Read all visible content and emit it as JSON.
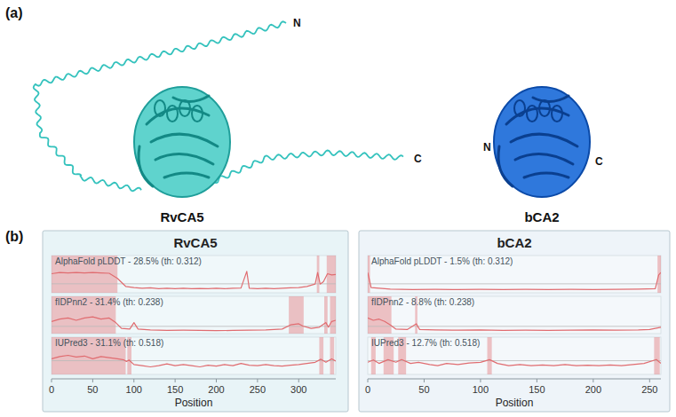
{
  "panel_labels": [
    "(a)",
    "(b)"
  ],
  "structures": [
    {
      "name": "RvCA5",
      "n_label": "N",
      "c_label": "C"
    },
    {
      "name": "bCA2",
      "n_label": "N",
      "c_label": "C"
    }
  ],
  "chart_data": [
    {
      "type": "line",
      "title": "RvCA5",
      "x_label": "Position",
      "xlim": [
        0,
        345
      ],
      "xticks": [
        0,
        50,
        100,
        150,
        200,
        250,
        300
      ],
      "ylim": [
        0,
        1
      ],
      "tick_labels": "x",
      "series": [
        {
          "name": "AlphaFold pLDDT - 28.5% (th: 0.312)",
          "color": "#e06c70",
          "threshold": 0.312,
          "x": [
            0,
            10,
            20,
            30,
            40,
            50,
            60,
            70,
            80,
            90,
            100,
            110,
            120,
            130,
            140,
            150,
            160,
            170,
            180,
            190,
            200,
            210,
            220,
            230,
            237,
            240,
            250,
            260,
            270,
            280,
            290,
            300,
            310,
            320,
            323,
            326,
            330,
            335,
            340,
            345
          ],
          "values": [
            0.75,
            0.8,
            0.78,
            0.8,
            0.78,
            0.8,
            0.78,
            0.77,
            0.55,
            0.2,
            0.15,
            0.12,
            0.14,
            0.1,
            0.12,
            0.1,
            0.12,
            0.1,
            0.11,
            0.1,
            0.12,
            0.1,
            0.12,
            0.13,
            0.85,
            0.12,
            0.1,
            0.12,
            0.1,
            0.12,
            0.14,
            0.15,
            0.2,
            0.3,
            0.8,
            0.3,
            0.4,
            0.75,
            0.7,
            0.72
          ],
          "regions": [
            [
              0,
              80
            ],
            [
              322,
              325
            ],
            [
              334,
              345
            ]
          ]
        },
        {
          "name": "fIDPnn2 - 31.4% (th: 0.238)",
          "color": "#e06c70",
          "threshold": 0.238,
          "x": [
            0,
            10,
            20,
            30,
            40,
            50,
            60,
            70,
            78,
            85,
            95,
            100,
            105,
            120,
            140,
            160,
            180,
            200,
            220,
            240,
            260,
            280,
            290,
            300,
            305,
            315,
            325,
            333,
            336,
            340,
            345
          ],
          "values": [
            0.45,
            0.55,
            0.6,
            0.5,
            0.6,
            0.65,
            0.55,
            0.6,
            0.4,
            0.15,
            0.12,
            0.4,
            0.12,
            0.08,
            0.06,
            0.07,
            0.06,
            0.05,
            0.06,
            0.07,
            0.08,
            0.12,
            0.3,
            0.35,
            0.25,
            0.15,
            0.2,
            0.4,
            0.2,
            0.45,
            0.5
          ],
          "regions": [
            [
              0,
              78
            ],
            [
              288,
              306
            ],
            [
              331,
              335
            ],
            [
              338,
              345
            ]
          ]
        },
        {
          "name": "IUPred3 - 31.1% (th: 0.518)",
          "color": "#e06c70",
          "threshold": 0.518,
          "x": [
            0,
            10,
            20,
            30,
            40,
            50,
            60,
            70,
            80,
            88,
            91,
            94,
            100,
            110,
            120,
            130,
            140,
            150,
            160,
            170,
            180,
            190,
            200,
            210,
            220,
            230,
            240,
            250,
            260,
            270,
            280,
            290,
            300,
            310,
            320,
            327,
            333,
            340,
            345
          ],
          "values": [
            0.6,
            0.7,
            0.75,
            0.68,
            0.72,
            0.6,
            0.7,
            0.65,
            0.6,
            0.55,
            0.48,
            0.55,
            0.35,
            0.3,
            0.25,
            0.3,
            0.38,
            0.3,
            0.35,
            0.3,
            0.25,
            0.32,
            0.28,
            0.35,
            0.3,
            0.4,
            0.32,
            0.3,
            0.35,
            0.3,
            0.28,
            0.32,
            0.35,
            0.4,
            0.45,
            0.58,
            0.45,
            0.6,
            0.5
          ],
          "regions": [
            [
              0,
              90
            ],
            [
              92,
              97
            ],
            [
              325,
              330
            ],
            [
              338,
              343
            ]
          ]
        }
      ]
    },
    {
      "type": "line",
      "title": "bCA2",
      "x_label": "Position",
      "xlim": [
        0,
        260
      ],
      "xticks": [
        0,
        50,
        100,
        150,
        200,
        250
      ],
      "ylim": [
        0,
        1
      ],
      "tick_labels": "x",
      "series": [
        {
          "name": "AlphaFold pLDDT - 1.5% (th: 0.312)",
          "color": "#e06c70",
          "threshold": 0.312,
          "x": [
            0,
            3,
            20,
            40,
            60,
            80,
            100,
            120,
            140,
            160,
            180,
            200,
            220,
            240,
            255,
            258,
            260
          ],
          "values": [
            0.8,
            0.15,
            0.08,
            0.06,
            0.07,
            0.06,
            0.07,
            0.06,
            0.07,
            0.06,
            0.07,
            0.06,
            0.07,
            0.08,
            0.1,
            0.7,
            0.8
          ],
          "regions": [
            [
              0,
              2
            ],
            [
              257,
              260
            ]
          ]
        },
        {
          "name": "fIDPnn2 - 8.8% (th: 0.238)",
          "color": "#e06c70",
          "threshold": 0.238,
          "x": [
            0,
            5,
            10,
            15,
            20,
            25,
            35,
            43,
            46,
            60,
            80,
            100,
            120,
            140,
            160,
            180,
            200,
            220,
            240,
            250,
            260
          ],
          "values": [
            0.6,
            0.5,
            0.55,
            0.45,
            0.3,
            0.12,
            0.1,
            0.35,
            0.1,
            0.08,
            0.07,
            0.08,
            0.06,
            0.07,
            0.06,
            0.07,
            0.08,
            0.07,
            0.08,
            0.1,
            0.2
          ],
          "regions": [
            [
              0,
              21
            ],
            [
              42,
              44
            ]
          ]
        },
        {
          "name": "IUPred3 - 12.7% (th: 0.518)",
          "color": "#e06c70",
          "threshold": 0.518,
          "x": [
            0,
            5,
            10,
            18,
            25,
            30,
            38,
            45,
            55,
            62,
            70,
            80,
            90,
            100,
            108,
            115,
            125,
            135,
            145,
            155,
            165,
            175,
            185,
            195,
            205,
            215,
            225,
            235,
            245,
            256,
            260
          ],
          "values": [
            0.45,
            0.55,
            0.4,
            0.56,
            0.45,
            0.57,
            0.4,
            0.45,
            0.35,
            0.3,
            0.4,
            0.35,
            0.42,
            0.45,
            0.56,
            0.4,
            0.3,
            0.35,
            0.3,
            0.33,
            0.3,
            0.35,
            0.3,
            0.32,
            0.3,
            0.33,
            0.3,
            0.35,
            0.4,
            0.57,
            0.4
          ],
          "regions": [
            [
              3,
              7
            ],
            [
              14,
              23
            ],
            [
              27,
              34
            ],
            [
              106,
              110
            ],
            [
              254,
              259
            ]
          ]
        }
      ]
    }
  ]
}
